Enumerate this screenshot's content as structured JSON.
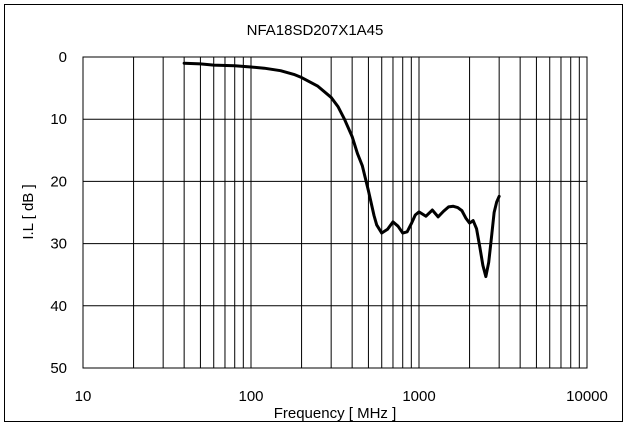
{
  "chart_data": {
    "type": "line",
    "title": "NFA18SD207X1A45",
    "xlabel": "Frequency [ MHz ]",
    "ylabel": "I.L [ dB ]",
    "x_scale": "log",
    "xlim": [
      10,
      10000
    ],
    "ylim": [
      0,
      50
    ],
    "y_inverted": true,
    "grid": true,
    "x_ticks": [
      10,
      100,
      1000,
      10000
    ],
    "x_tick_labels": [
      "10",
      "100",
      "1000",
      "10000"
    ],
    "y_ticks": [
      0,
      10,
      20,
      30,
      40,
      50
    ],
    "y_tick_labels": [
      "0",
      "10",
      "20",
      "30",
      "40",
      "50"
    ],
    "series": [
      {
        "color": "#000000",
        "x": [
          40,
          50,
          60,
          80,
          100,
          120,
          150,
          180,
          200,
          250,
          300,
          330,
          360,
          400,
          430,
          460,
          500,
          540,
          560,
          600,
          650,
          700,
          750,
          800,
          850,
          900,
          950,
          1000,
          1100,
          1200,
          1300,
          1400,
          1500,
          1600,
          1700,
          1800,
          1900,
          2000,
          2100,
          2200,
          2300,
          2400,
          2500,
          2600,
          2700,
          2800,
          2900,
          3000
        ],
        "y": [
          1.0,
          1.1,
          1.3,
          1.4,
          1.6,
          1.8,
          2.2,
          2.8,
          3.3,
          4.7,
          6.5,
          8.0,
          10.0,
          12.8,
          15.5,
          17.5,
          21.5,
          25.5,
          27.0,
          28.3,
          27.7,
          26.5,
          27.2,
          28.3,
          28.1,
          26.8,
          25.4,
          24.9,
          25.6,
          24.6,
          25.7,
          24.8,
          24.1,
          24.0,
          24.2,
          24.7,
          25.9,
          26.7,
          26.3,
          27.6,
          30.5,
          33.5,
          35.3,
          33.0,
          29.0,
          25.0,
          23.3,
          22.4
        ]
      }
    ]
  }
}
